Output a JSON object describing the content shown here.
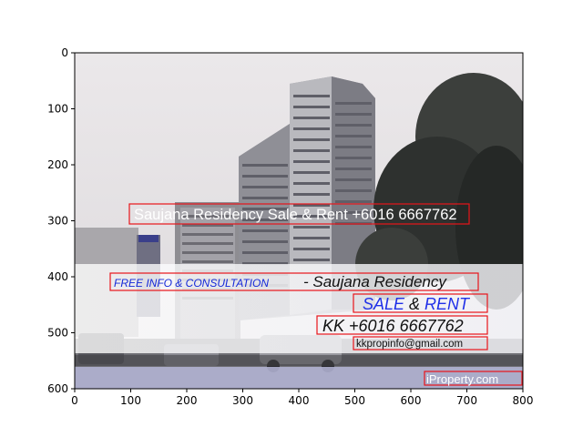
{
  "axes": {
    "x_ticks": [
      "0",
      "100",
      "200",
      "300",
      "400",
      "500",
      "600",
      "700",
      "800"
    ],
    "y_ticks": [
      "0",
      "100",
      "200",
      "300",
      "400",
      "500",
      "600"
    ],
    "xlim": [
      0,
      800
    ],
    "ylim": [
      600,
      0
    ]
  },
  "image": {
    "headline": "Saujana Residency Sale & Rent +6016 6667762",
    "banner": {
      "free_info": "FREE INFO & CONSULTATION",
      "dash_title": "- Saujana Residency",
      "sale": "SALE",
      "amp": " & ",
      "rent": "RENT",
      "phone": "KK +6016 6667762",
      "email": "kkpropinfo@gmail.com"
    },
    "watermark": "iProperty.com"
  },
  "colors": {
    "box_outline": "#e8141a",
    "free_info_blue": "#1428d8",
    "sale_rent_blue": "#2030e8",
    "sky": "#e6e3e4",
    "banner_white": "#f4f4f6",
    "road_lavender": "#b6b7d8"
  }
}
